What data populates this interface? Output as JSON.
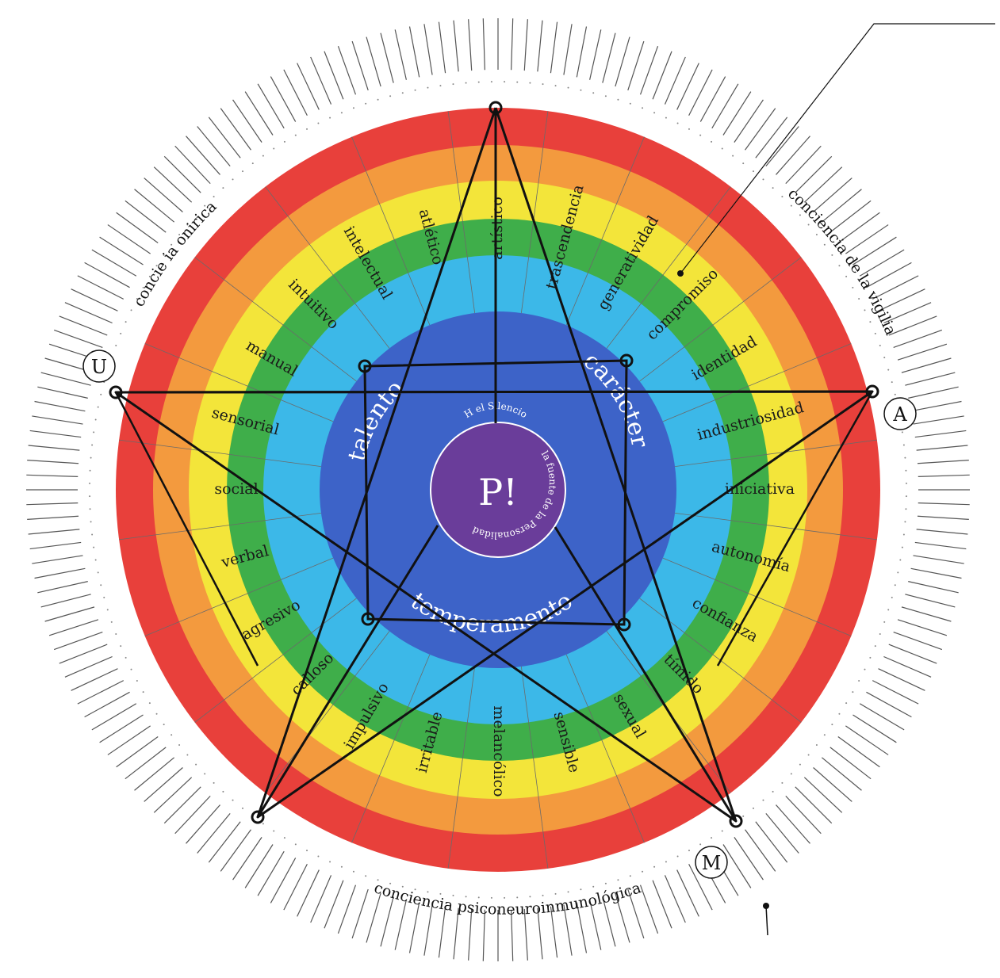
{
  "center": {
    "symbol": "P!",
    "top_text": "H el Silencio",
    "bottom_text": "la fuente de la Personalidad",
    "color": "#6a3d9a"
  },
  "core_labels": {
    "talento": "talento",
    "caracter": "carácter",
    "temperamento": "temperamento"
  },
  "segments": [
    "artístico",
    "trascendencia",
    "generatividad",
    "compromiso",
    "identidad",
    "industriosidad",
    "iniciativa",
    "autonomía",
    "confianza",
    "tímido",
    "sexual",
    "sensible",
    "melancólico",
    "irritable",
    "impulsivo",
    "calloso",
    "agresivo",
    "verbal",
    "social",
    "sensorial",
    "manual",
    "intuitivo",
    "intelectual",
    "atlético"
  ],
  "outer_labels": {
    "onirica": "concie    ia onirica",
    "vigilia": "conciencia de la vigilia",
    "psico": "conciencia psiconeuroinmunológica"
  },
  "vertex_letters": [
    "U",
    "A",
    "M"
  ],
  "colors": {
    "rings": [
      "#e8403b",
      "#f39a3e",
      "#f3e53a",
      "#3fae4a",
      "#3cb8e8"
    ],
    "core": "#3d63c8",
    "lines": "#111111",
    "ticks": "#555555"
  }
}
